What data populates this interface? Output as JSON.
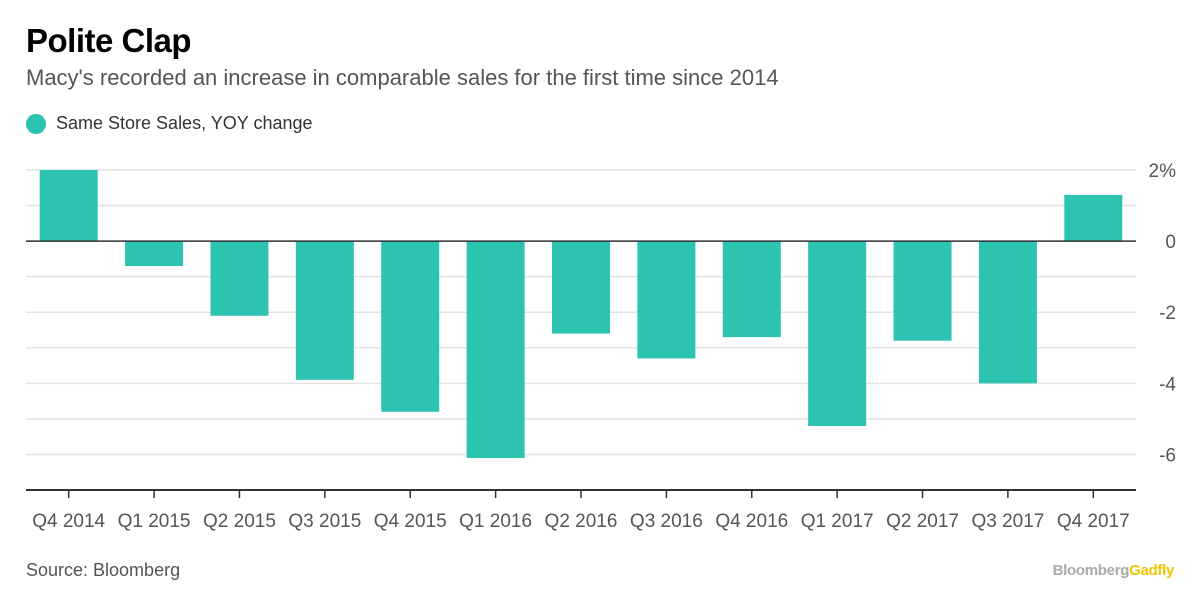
{
  "header": {
    "title": "Polite Clap",
    "subtitle": "Macy's recorded an increase in comparable sales for the first time since 2014"
  },
  "legend": {
    "label": "Same Store Sales, YOY change"
  },
  "footer": {
    "source": "Source: Bloomberg",
    "brand_part1": "Bloomberg",
    "brand_part2": "Gadfly"
  },
  "colors": {
    "bar": "#2cc3b1",
    "brand_accent": "#f2c300",
    "grid": "#e4e4e4",
    "axis": "#333333"
  },
  "chart_data": {
    "type": "bar",
    "title": "Polite Clap",
    "subtitle": "Macy's recorded an increase in comparable sales for the first time since 2014",
    "categories": [
      "Q4 2014",
      "Q1 2015",
      "Q2 2015",
      "Q3 2015",
      "Q4 2015",
      "Q1 2016",
      "Q2 2016",
      "Q3 2016",
      "Q4 2016",
      "Q1 2017",
      "Q2 2017",
      "Q3 2017",
      "Q4 2017"
    ],
    "series": [
      {
        "name": "Same Store Sales, YOY change",
        "values": [
          2.0,
          -0.7,
          -2.1,
          -3.9,
          -4.8,
          -6.1,
          -2.6,
          -3.3,
          -2.7,
          -5.2,
          -2.8,
          -4.0,
          1.3
        ]
      }
    ],
    "ylim": [
      -7,
      2
    ],
    "yticks": [
      2,
      0,
      -2,
      -4,
      -6
    ],
    "ytick_labels": [
      "2%",
      "0",
      "-2",
      "-4",
      "-6"
    ],
    "grid": true,
    "legend_position": "top-left",
    "xlabel": "",
    "ylabel": ""
  }
}
